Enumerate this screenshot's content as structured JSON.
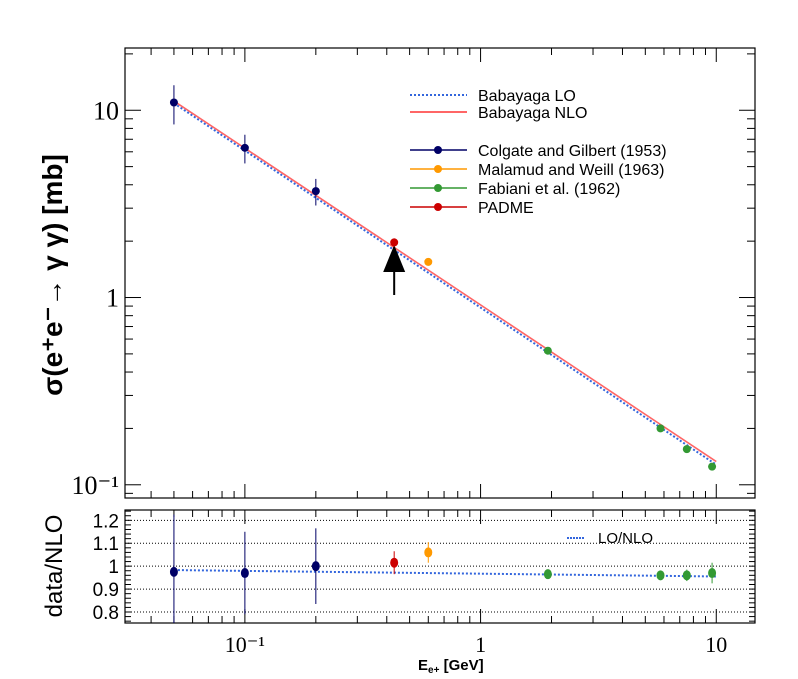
{
  "chart_data": {
    "type": "scatter",
    "xlabel_main": "E",
    "xlabel_sub": "e+",
    "xlabel_unit": "[GeV]",
    "ylabel_top": "σ(e⁺e⁻→ γ γ) [mb]",
    "ylabel_bottom": "data/NLO",
    "xscale": "log",
    "xlim": [
      0.031,
      14.6
    ],
    "top_yscale": "log",
    "top_ylim": [
      0.085,
      21.5
    ],
    "bottom_ylim": [
      0.752,
      1.245
    ],
    "x_ticks": [
      {
        "v": 0.1,
        "label": "10⁻¹"
      },
      {
        "v": 1,
        "label": "1"
      },
      {
        "v": 10,
        "label": "10"
      }
    ],
    "top_y_ticks": [
      {
        "v": 10,
        "label": "10"
      },
      {
        "v": 1,
        "label": "1"
      },
      {
        "v": 0.1,
        "label": "10⁻¹"
      }
    ],
    "bottom_y_ticks": [
      {
        "v": 1.2,
        "label": "1.2"
      },
      {
        "v": 1.1,
        "label": "1.1"
      },
      {
        "v": 1.0,
        "label": "1"
      },
      {
        "v": 0.9,
        "label": "0.9"
      },
      {
        "v": 0.8,
        "label": "0.8"
      }
    ],
    "theory": [
      {
        "name": "Babayaga LO",
        "color": "#3366dd",
        "style": "dotted",
        "x": [
          0.05,
          10
        ],
        "y": [
          10.9,
          0.128
        ]
      },
      {
        "name": "Babayaga NLO",
        "color": "#ff6666",
        "style": "solid",
        "x": [
          0.05,
          10
        ],
        "y": [
          11.2,
          0.133
        ]
      }
    ],
    "ratio_curve": {
      "name": "LO/NLO",
      "color": "#3366dd",
      "x": [
        0.05,
        10
      ],
      "y": [
        0.983,
        0.955
      ]
    },
    "series": [
      {
        "name": "Colgate and Gilbert (1953)",
        "color": "#000066",
        "points": [
          {
            "x": 0.05,
            "y": 11.0,
            "ey": 2.6,
            "r": 0.975,
            "er": 0.25
          },
          {
            "x": 0.1,
            "y": 6.3,
            "ey": 1.1,
            "r": 0.97,
            "er": 0.18
          },
          {
            "x": 0.2,
            "y": 3.7,
            "ey": 0.6,
            "r": 1.0,
            "er": 0.165
          }
        ]
      },
      {
        "name": "Malamud and Weill (1963)",
        "color": "#ff9900",
        "points": [
          {
            "x": 0.6,
            "y": 1.55,
            "ey": 0.07,
            "r": 1.06,
            "er": 0.045
          }
        ]
      },
      {
        "name": "Fabiani et al. (1962)",
        "color": "#339933",
        "points": [
          {
            "x": 1.93,
            "y": 0.52,
            "ey": 0.01,
            "r": 0.965,
            "er": 0.015
          },
          {
            "x": 5.8,
            "y": 0.2,
            "ey": 0.005,
            "r": 0.96,
            "er": 0.02
          },
          {
            "x": 7.5,
            "y": 0.155,
            "ey": 0.005,
            "r": 0.96,
            "er": 0.025
          },
          {
            "x": 9.6,
            "y": 0.125,
            "ey": 0.005,
            "r": 0.97,
            "er": 0.045
          }
        ]
      },
      {
        "name": "PADME",
        "color": "#cc0000",
        "points": [
          {
            "x": 0.43,
            "y": 1.97,
            "ey": 0.1,
            "r": 1.015,
            "er": 0.05
          }
        ]
      }
    ],
    "annotation": {
      "type": "arrow",
      "x": 0.43
    }
  }
}
